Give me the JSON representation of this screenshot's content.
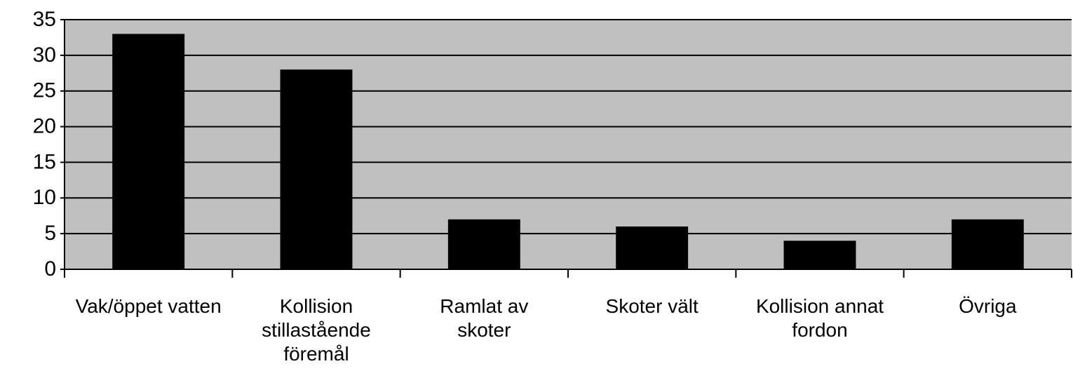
{
  "chart_data": {
    "type": "bar",
    "categories": [
      "Vak/öppet vatten",
      "Kollision stillastående föremål",
      "Ramlat av skoter",
      "Skoter vält",
      "Kollision annat fordon",
      "Övriga"
    ],
    "values": [
      33,
      28,
      7,
      6,
      4,
      7
    ],
    "color": "#000000",
    "background": "#c0c0c0",
    "ylim": [
      0,
      35
    ],
    "yticks": [
      0,
      5,
      10,
      15,
      20,
      25,
      30,
      35
    ],
    "grid": true
  }
}
